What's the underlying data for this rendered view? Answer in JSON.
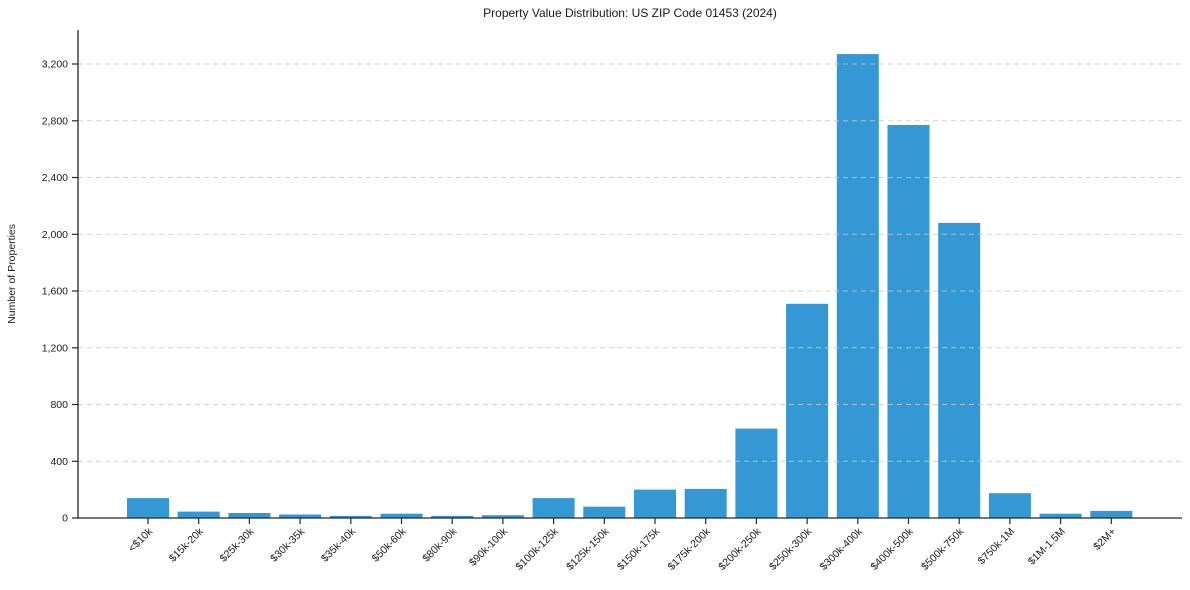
{
  "chart_data": {
    "type": "bar",
    "title": "Property Value Distribution: US ZIP Code 01453 (2024)",
    "xlabel": "",
    "ylabel": "Number of Properties",
    "categories": [
      "<$10k",
      "$15k-20k",
      "$25k-30k",
      "$30k-35k",
      "$35k-40k",
      "$50k-60k",
      "$80k-90k",
      "$90k-100k",
      "$100k-125k",
      "$125k-150k",
      "$150k-175k",
      "$175k-200k",
      "$200k-250k",
      "$250k-300k",
      "$300k-400k",
      "$400k-500k",
      "$500k-750k",
      "$750k-1M",
      "$1M-1.5M",
      "$2M+"
    ],
    "values": [
      140,
      45,
      35,
      25,
      15,
      30,
      15,
      20,
      140,
      80,
      200,
      205,
      630,
      1510,
      3270,
      2770,
      2080,
      175,
      30,
      50
    ],
    "ylim": [
      0,
      3440
    ],
    "yticks": [
      0,
      400,
      800,
      1200,
      1600,
      2000,
      2400,
      2800,
      3200
    ],
    "ytick_labels": [
      "0",
      "400",
      "800",
      "1,200",
      "1,600",
      "2,000",
      "2,400",
      "2,800",
      "3,200"
    ],
    "bar_color": "#3498d4",
    "grid": true,
    "grid_axis": "y",
    "grid_style": "dashed",
    "legend": "none",
    "x_tick_rotation": 45
  }
}
